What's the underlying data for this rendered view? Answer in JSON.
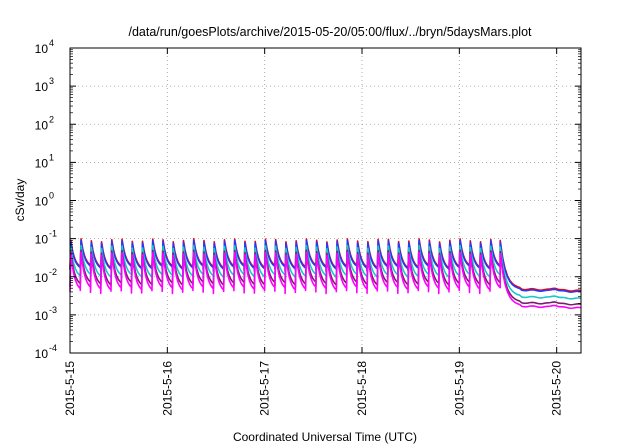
{
  "chart_data": {
    "type": "line",
    "title": "/data/run/goesPlots/archive/2015-05-20/05:00/flux/../bryn/5daysMars.plot",
    "xlabel": "Coordinated Universal Time (UTC)",
    "ylabel": "cSv/day",
    "yscale": "log",
    "ylim": [
      0.0001,
      10000
    ],
    "xlim_days": [
      0,
      5.25
    ],
    "x_ticks": [
      {
        "day": 0,
        "label": "2015-5-15"
      },
      {
        "day": 1,
        "label": "2015-5-16"
      },
      {
        "day": 2,
        "label": "2015-5-17"
      },
      {
        "day": 3,
        "label": "2015-5-18"
      },
      {
        "day": 4,
        "label": "2015-5-19"
      },
      {
        "day": 5,
        "label": "2015-5-20"
      }
    ],
    "y_ticks": [
      {
        "value": 0.0001,
        "mantissa": "10",
        "exp": "-4"
      },
      {
        "value": 0.001,
        "mantissa": "10",
        "exp": "-3"
      },
      {
        "value": 0.01,
        "mantissa": "10",
        "exp": "-2"
      },
      {
        "value": 0.1,
        "mantissa": "10",
        "exp": "-1"
      },
      {
        "value": 1,
        "mantissa": "10",
        "exp": "0"
      },
      {
        "value": 10,
        "mantissa": "10",
        "exp": "1"
      },
      {
        "value": 100,
        "mantissa": "10",
        "exp": "2"
      },
      {
        "value": 1000,
        "mantissa": "10",
        "exp": "3"
      },
      {
        "value": 10000,
        "mantissa": "10",
        "exp": "4"
      }
    ],
    "grid": true,
    "legend": "none",
    "series": [
      {
        "color": "#ff0000",
        "peak": 0.09,
        "trough": 0.016,
        "late_level": 0.0048
      },
      {
        "color": "#1e3cff",
        "peak": 0.082,
        "trough": 0.015,
        "late_level": 0.0045
      },
      {
        "color": "#19c8c8",
        "peak": 0.06,
        "trough": 0.009,
        "late_level": 0.003
      },
      {
        "color": "#7a1f6e",
        "peak": 0.045,
        "trough": 0.0055,
        "late_level": 0.0021
      },
      {
        "color": "#ff00ff",
        "peak": 0.04,
        "trough": 0.004,
        "late_level": 0.0017
      }
    ],
    "sawtooth_cycles": 42,
    "sawtooth_end_day": 4.42,
    "decay_end_day": 4.62
  }
}
